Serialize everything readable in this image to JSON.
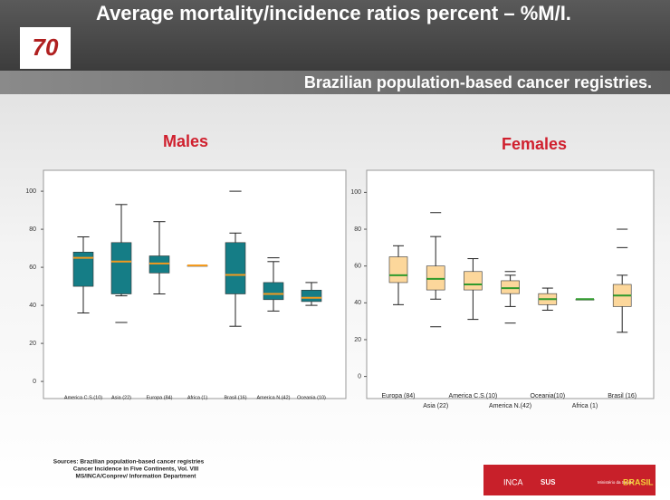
{
  "slide": {
    "title": "Average mortality/incidence ratios percent – %M/I.",
    "subtitle": "Brazilian population-based cancer registries.",
    "logo": "70",
    "sources": [
      "Sources: Brazilian population-based cancer registries",
      "Cancer Incidence in Five Continents, Vol. VIII",
      "MS/INCA/Conprev/ Information Department"
    ],
    "footer_logos": [
      "INCA",
      "SUS",
      "Ministério da Saúde",
      "BRASIL"
    ]
  },
  "chart_data": [
    {
      "type": "box",
      "title": "Males",
      "box_color": "#157d86",
      "median_color": "#f39a1e",
      "label_rows": 1,
      "categories": [
        "America C.S.(10)",
        "Asia (22)",
        "Europa (84)",
        "Africa (1)",
        "Brasil (16)",
        "America N.(42)",
        "Oceania (10)"
      ],
      "boxes": [
        {
          "low": 36,
          "q1": 50,
          "median": 65,
          "q3": 68,
          "high": 76,
          "outliers": []
        },
        {
          "low": 45,
          "q1": 46,
          "median": 63,
          "q3": 73,
          "high": 93,
          "outliers": [
            31
          ]
        },
        {
          "low": 46,
          "q1": 57,
          "median": 62,
          "q3": 66,
          "high": 84,
          "outliers": []
        },
        {
          "low": 61,
          "q1": 61,
          "median": 61,
          "q3": 61,
          "high": 61,
          "outliers": []
        },
        {
          "low": 29,
          "q1": 46,
          "median": 56,
          "q3": 73,
          "high": 78,
          "outliers": [
            100
          ]
        },
        {
          "low": 37,
          "q1": 43,
          "median": 46,
          "q3": 52,
          "high": 63,
          "outliers": [
            65
          ]
        },
        {
          "low": 40,
          "q1": 42,
          "median": 44,
          "q3": 48,
          "high": 52,
          "outliers": []
        }
      ],
      "ylim": [
        -9,
        111
      ],
      "yticks": [
        0,
        20,
        40,
        60,
        80,
        100
      ]
    },
    {
      "type": "box",
      "title": "Females",
      "box_color": "#fcd79b",
      "median_color": "#2f9a2c",
      "label_rows": 2,
      "categories": [
        "Europa (84)",
        "Asia (22)",
        "America C.S.(10)",
        "America N.(42)",
        "Oceania(10)",
        "Africa (1)",
        "Brasil (16)"
      ],
      "boxes": [
        {
          "low": 39,
          "q1": 51,
          "median": 55,
          "q3": 65,
          "high": 71,
          "outliers": []
        },
        {
          "low": 42,
          "q1": 47,
          "median": 53,
          "q3": 60,
          "high": 76,
          "outliers": [
            89,
            27
          ]
        },
        {
          "low": 31,
          "q1": 47,
          "median": 50,
          "q3": 57,
          "high": 64,
          "outliers": []
        },
        {
          "low": 38,
          "q1": 45,
          "median": 48,
          "q3": 52,
          "high": 55,
          "outliers": [
            57,
            29
          ]
        },
        {
          "low": 36,
          "q1": 39,
          "median": 42,
          "q3": 45,
          "high": 48,
          "outliers": []
        },
        {
          "low": 42,
          "q1": 42,
          "median": 42,
          "q3": 42,
          "high": 42,
          "outliers": []
        },
        {
          "low": 24,
          "q1": 38,
          "median": 44,
          "q3": 50,
          "high": 55,
          "outliers": [
            80,
            70
          ]
        }
      ],
      "ylim": [
        -12,
        112
      ],
      "yticks": [
        0,
        20,
        40,
        60,
        80,
        100
      ]
    }
  ]
}
